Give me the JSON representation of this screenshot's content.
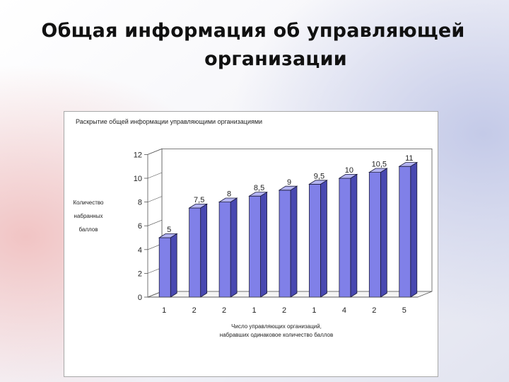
{
  "slide": {
    "title_line1": "Общая информация об управляющей",
    "title_line2": "организации"
  },
  "colors": {
    "bar_front": "#8080e8",
    "bar_top": "#b4b4f2",
    "bar_side": "#4848b0",
    "bar_edge": "#1a1a3a"
  },
  "chart_data": {
    "type": "bar",
    "title": "Раскрытие общей информации управляющими организациями",
    "ylabel_lines": [
      "Количество",
      "набранных",
      "баллов"
    ],
    "xlabel_lines": [
      "Число управляющих организаций,",
      "набравших одинаковое количество баллов"
    ],
    "categories": [
      "1",
      "2",
      "2",
      "1",
      "2",
      "1",
      "4",
      "2",
      "5"
    ],
    "values": [
      5,
      7.5,
      8,
      8.5,
      9,
      9.5,
      10,
      10.5,
      11
    ],
    "value_labels": [
      "5",
      "7,5",
      "8",
      "8,5",
      "9",
      "9,5",
      "10",
      "10,5",
      "11"
    ],
    "yticks": [
      "0",
      "2",
      "4",
      "6",
      "8",
      "10",
      "12"
    ],
    "ylim": [
      0,
      12
    ],
    "grid": false,
    "legend": "none",
    "style": "3d"
  }
}
